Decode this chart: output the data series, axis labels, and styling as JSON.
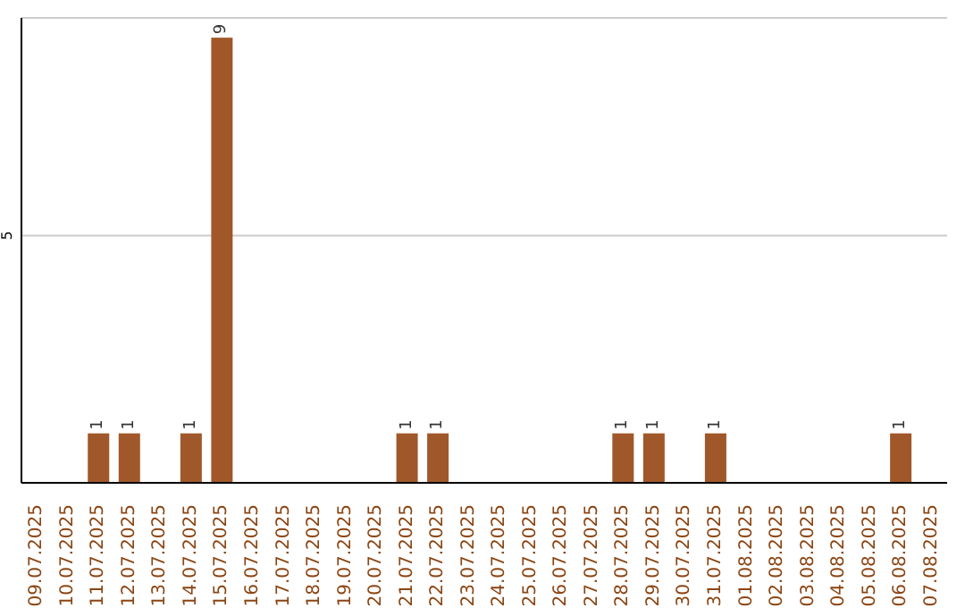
{
  "chart_data": {
    "type": "bar",
    "categories": [
      "09.07.2025",
      "10.07.2025",
      "11.07.2025",
      "12.07.2025",
      "13.07.2025",
      "14.07.2025",
      "15.07.2025",
      "16.07.2025",
      "17.07.2025",
      "18.07.2025",
      "19.07.2025",
      "20.07.2025",
      "21.07.2025",
      "22.07.2025",
      "23.07.2025",
      "24.07.2025",
      "25.07.2025",
      "26.07.2025",
      "27.07.2025",
      "28.07.2025",
      "29.07.2025",
      "30.07.2025",
      "31.07.2025",
      "01.08.2025",
      "02.08.2025",
      "03.08.2025",
      "04.08.2025",
      "05.08.2025",
      "06.08.2025",
      "07.08.2025"
    ],
    "values": [
      0,
      0,
      1,
      1,
      0,
      1,
      9,
      0,
      0,
      0,
      0,
      0,
      1,
      1,
      0,
      0,
      0,
      0,
      0,
      1,
      1,
      0,
      1,
      0,
      0,
      0,
      0,
      0,
      1,
      0
    ],
    "value_labels": [
      null,
      null,
      "1",
      "1",
      null,
      "1",
      "9",
      null,
      null,
      null,
      null,
      null,
      "1",
      "1",
      null,
      null,
      null,
      null,
      null,
      "1",
      "1",
      null,
      "1",
      null,
      null,
      null,
      null,
      null,
      "1",
      null
    ],
    "color": "#a0582a",
    "ylim": [
      0,
      9.4
    ],
    "yticks": [
      {
        "value": 0,
        "label": null
      },
      5
    ],
    "grid": "y",
    "legend": false
  }
}
